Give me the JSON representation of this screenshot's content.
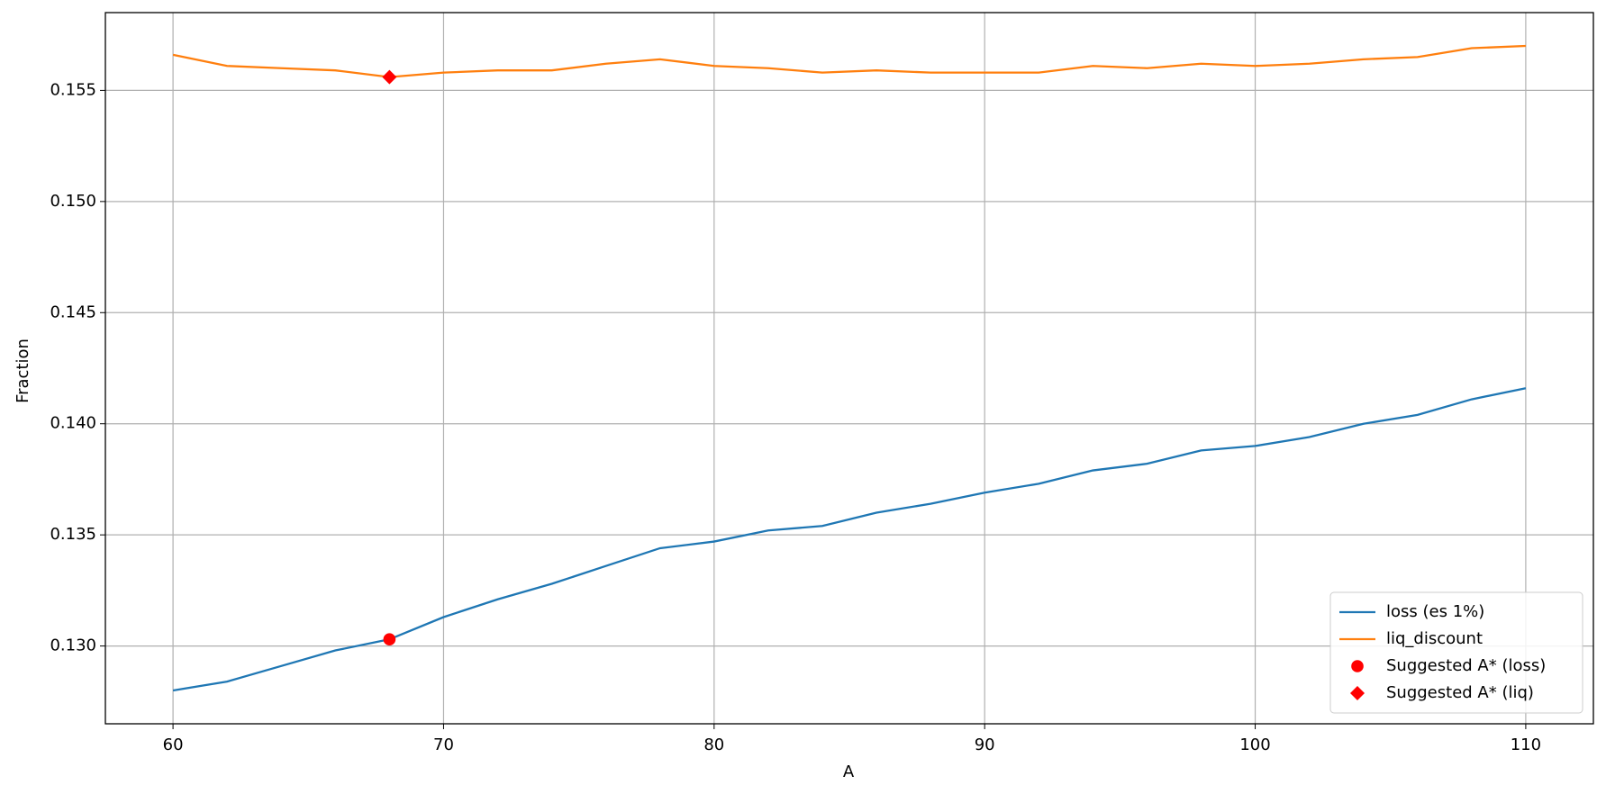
{
  "chart_data": {
    "type": "line",
    "xlabel": "A",
    "ylabel": "Fraction",
    "x": [
      60,
      62,
      64,
      66,
      68,
      70,
      72,
      74,
      76,
      78,
      80,
      82,
      84,
      86,
      88,
      90,
      92,
      94,
      96,
      98,
      100,
      102,
      104,
      106,
      108,
      110
    ],
    "series": [
      {
        "name": "loss (es 1%)",
        "color": "#1f77b4",
        "kind": "line",
        "values": [
          0.128,
          0.1284,
          0.1291,
          0.1298,
          0.1303,
          0.1313,
          0.1321,
          0.1328,
          0.1336,
          0.1344,
          0.1347,
          0.1352,
          0.1354,
          0.136,
          0.1364,
          0.1369,
          0.1373,
          0.1379,
          0.1382,
          0.1388,
          0.139,
          0.1394,
          0.14,
          0.1404,
          0.1411,
          0.1416
        ]
      },
      {
        "name": "liq_discount",
        "color": "#ff7f0e",
        "kind": "line",
        "values": [
          0.1566,
          0.1561,
          0.156,
          0.1559,
          0.1556,
          0.1558,
          0.1559,
          0.1559,
          0.1562,
          0.1564,
          0.1561,
          0.156,
          0.1558,
          0.1559,
          0.1558,
          0.1558,
          0.1558,
          0.1561,
          0.156,
          0.1562,
          0.1561,
          0.1562,
          0.1564,
          0.1565,
          0.1569,
          0.157
        ]
      },
      {
        "name": "Suggested A* (loss)",
        "color": "#ff0000",
        "kind": "scatter",
        "marker": "circle",
        "x": [
          68
        ],
        "values": [
          0.1303
        ]
      },
      {
        "name": "Suggested A* (liq)",
        "color": "#ff0000",
        "kind": "scatter",
        "marker": "diamond",
        "x": [
          68
        ],
        "values": [
          0.1556
        ]
      }
    ],
    "xlim": [
      57.5,
      112.5
    ],
    "xticks": [
      60,
      70,
      80,
      90,
      100,
      110
    ],
    "ylim": [
      0.1265,
      0.1585
    ],
    "yticks": [
      {
        "value": 0.13,
        "label": "0.130"
      },
      {
        "value": 0.135,
        "label": "0.135"
      },
      {
        "value": 0.14,
        "label": "0.140"
      },
      {
        "value": 0.145,
        "label": "0.145"
      },
      {
        "value": 0.15,
        "label": "0.150"
      },
      {
        "value": 0.155,
        "label": "0.155"
      }
    ],
    "grid": true,
    "legend": "lower right"
  }
}
